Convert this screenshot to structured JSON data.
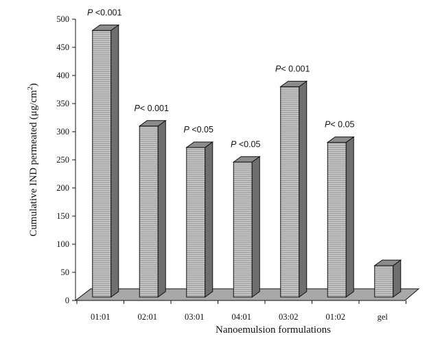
{
  "chart_data": {
    "type": "bar",
    "style": "3d",
    "categories": [
      "01:01",
      "02:01",
      "03:01",
      "04:01",
      "03:02",
      "01:02",
      "gel"
    ],
    "values": [
      480,
      310,
      272,
      246,
      380,
      281,
      62
    ],
    "annotations": [
      {
        "prefix": "P",
        "text": " <0.001"
      },
      {
        "prefix": "P",
        "text": "< 0.001"
      },
      {
        "prefix": "P",
        "text": " <0.05"
      },
      {
        "prefix": "P",
        "text": " <0.05"
      },
      {
        "prefix": "P",
        "text": "< 0.001"
      },
      {
        "prefix": "P",
        "text": "< 0.05"
      },
      {
        "prefix": "",
        "text": ""
      }
    ],
    "title": "",
    "xlabel": "Nanoemulsion formulations",
    "ylabel": {
      "main": "Cumulative IND permeated (μg/cm",
      "superscript": "2",
      "end": ")"
    },
    "ylim": [
      0,
      500
    ],
    "yticks": [
      0,
      50,
      100,
      150,
      200,
      250,
      300,
      350,
      400,
      450,
      500
    ],
    "grid": false,
    "legend": "none",
    "colors": {
      "bar_front": "#a9a9a9",
      "bar_stripe": "#cfcfcf",
      "bar_side": "#6f6f6f",
      "bar_top": "#8c8c8c",
      "floor": "#a8a8a8",
      "outline": "#111111"
    }
  }
}
